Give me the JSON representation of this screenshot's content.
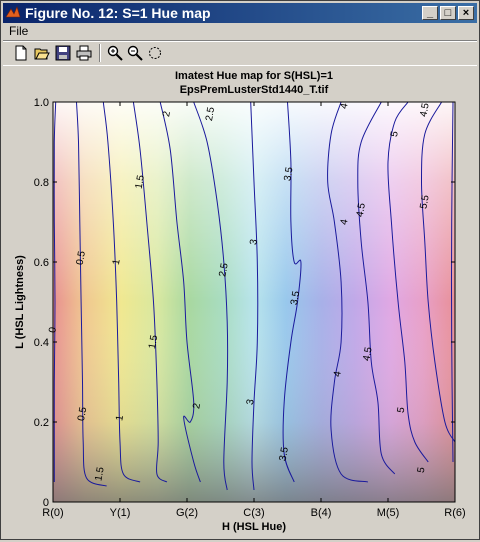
{
  "window": {
    "title": "Figure No. 12: S=1 Hue map",
    "menu": [
      "File"
    ],
    "buttons": {
      "minimize": "_",
      "maximize": "□",
      "close": "×"
    }
  },
  "toolbar": {
    "icons": [
      "new-file-icon",
      "open-folder-icon",
      "save-disk-icon",
      "print-icon",
      "zoom-in-icon",
      "zoom-out-icon",
      "rotate-icon"
    ]
  },
  "chart_data": {
    "type": "contour",
    "title_line1": "Imatest Hue map for S(HSL)=1",
    "title_line2": "EpsPremLusterStd1440_T.tif",
    "xlabel": "H (HSL Hue)",
    "ylabel": "L (HSL Lightness)",
    "x_ticks": [
      "R(0)",
      "Y(1)",
      "G(2)",
      "C(3)",
      "B(4)",
      "M(5)",
      "R(6)"
    ],
    "y_ticks": [
      "0",
      "0.2",
      "0.4",
      "0.6",
      "0.8",
      "1.0"
    ],
    "xlim": [
      0,
      6
    ],
    "ylim": [
      0,
      1
    ],
    "contour_color": "#1a1a9c",
    "contours": [
      {
        "level": "0",
        "points": [
          [
            0.04,
            1.0
          ],
          [
            0.02,
            0.9
          ],
          [
            0.02,
            0.7
          ],
          [
            0.03,
            0.5
          ],
          [
            0.02,
            0.3
          ],
          [
            0.02,
            0.05
          ]
        ],
        "labels": [
          [
            0.0,
            0.43
          ]
        ]
      },
      {
        "level": "0.5",
        "points": [
          [
            0.35,
            1.0
          ],
          [
            0.38,
            0.9
          ],
          [
            0.4,
            0.7
          ],
          [
            0.42,
            0.5
          ],
          [
            0.44,
            0.3
          ],
          [
            0.45,
            0.15
          ],
          [
            0.5,
            0.06
          ],
          [
            0.8,
            0.04
          ]
        ],
        "labels": [
          [
            0.42,
            0.61
          ],
          [
            0.44,
            0.22
          ]
        ]
      },
      {
        "level": "1",
        "points": [
          [
            0.75,
            1.0
          ],
          [
            0.82,
            0.9
          ],
          [
            0.9,
            0.7
          ],
          [
            0.95,
            0.5
          ],
          [
            0.98,
            0.3
          ],
          [
            1.0,
            0.15
          ],
          [
            1.05,
            0.07
          ],
          [
            1.3,
            0.05
          ]
        ],
        "labels": [
          [
            0.95,
            0.6
          ],
          [
            1.0,
            0.21
          ]
        ]
      },
      {
        "level": "1.5",
        "points": [
          [
            1.2,
            1.0
          ],
          [
            1.3,
            0.88
          ],
          [
            1.4,
            0.7
          ],
          [
            1.5,
            0.5
          ],
          [
            1.55,
            0.3
          ],
          [
            1.57,
            0.15
          ],
          [
            1.55,
            0.07
          ],
          [
            1.7,
            0.05
          ]
        ],
        "labels": [
          [
            1.3,
            0.8
          ],
          [
            1.5,
            0.4
          ],
          [
            0.7,
            0.07
          ]
        ]
      },
      {
        "level": "2",
        "points": [
          [
            1.6,
            1.0
          ],
          [
            1.75,
            0.88
          ],
          [
            1.85,
            0.7
          ],
          [
            1.95,
            0.55
          ],
          [
            2.0,
            0.4
          ],
          [
            2.1,
            0.25
          ],
          [
            2.05,
            0.2
          ],
          [
            1.95,
            0.21
          ],
          [
            2.1,
            0.1
          ],
          [
            2.2,
            0.05
          ]
        ],
        "labels": [
          [
            1.7,
            0.97
          ],
          [
            2.15,
            0.24
          ]
        ]
      },
      {
        "level": "2.5",
        "points": [
          [
            2.1,
            1.0
          ],
          [
            2.3,
            0.9
          ],
          [
            2.45,
            0.75
          ],
          [
            2.55,
            0.6
          ],
          [
            2.6,
            0.45
          ],
          [
            2.6,
            0.3
          ],
          [
            2.55,
            0.1
          ],
          [
            2.6,
            0.03
          ]
        ],
        "labels": [
          [
            2.35,
            0.97
          ],
          [
            2.55,
            0.58
          ]
        ]
      },
      {
        "level": "3",
        "points": [
          [
            2.95,
            1.0
          ],
          [
            3.0,
            0.8
          ],
          [
            3.05,
            0.6
          ],
          [
            3.05,
            0.4
          ],
          [
            3.0,
            0.25
          ],
          [
            2.97,
            0.1
          ],
          [
            3.0,
            0.03
          ]
        ],
        "labels": [
          [
            3.0,
            0.65
          ],
          [
            2.95,
            0.25
          ]
        ]
      },
      {
        "level": "3.5",
        "points": [
          [
            3.5,
            1.0
          ],
          [
            3.55,
            0.85
          ],
          [
            3.55,
            0.7
          ],
          [
            3.6,
            0.6
          ],
          [
            3.7,
            0.6
          ],
          [
            3.65,
            0.5
          ],
          [
            3.55,
            0.4
          ],
          [
            3.45,
            0.25
          ],
          [
            3.45,
            0.12
          ],
          [
            3.6,
            0.05
          ]
        ],
        "labels": [
          [
            3.52,
            0.82
          ],
          [
            3.62,
            0.51
          ],
          [
            3.45,
            0.12
          ]
        ]
      },
      {
        "level": "4",
        "points": [
          [
            4.3,
            1.0
          ],
          [
            4.15,
            0.92
          ],
          [
            4.1,
            0.8
          ],
          [
            4.2,
            0.7
          ],
          [
            4.3,
            0.55
          ],
          [
            4.3,
            0.4
          ],
          [
            4.2,
            0.3
          ],
          [
            4.15,
            0.18
          ],
          [
            4.3,
            0.07
          ],
          [
            4.7,
            0.05
          ]
        ],
        "labels": [
          [
            4.35,
            0.99
          ],
          [
            4.35,
            0.7
          ],
          [
            4.25,
            0.32
          ]
        ]
      },
      {
        "level": "4.5",
        "points": [
          [
            4.9,
            1.0
          ],
          [
            4.6,
            0.9
          ],
          [
            4.55,
            0.8
          ],
          [
            4.6,
            0.65
          ],
          [
            4.7,
            0.5
          ],
          [
            4.75,
            0.35
          ],
          [
            4.85,
            0.25
          ],
          [
            4.9,
            0.12
          ],
          [
            5.1,
            0.07
          ]
        ],
        "labels": [
          [
            5.55,
            0.98
          ],
          [
            4.6,
            0.73
          ],
          [
            4.7,
            0.37
          ]
        ]
      },
      {
        "level": "5",
        "points": [
          [
            5.3,
            1.0
          ],
          [
            5.1,
            0.95
          ],
          [
            5.0,
            0.85
          ],
          [
            5.05,
            0.7
          ],
          [
            5.15,
            0.5
          ],
          [
            5.25,
            0.35
          ],
          [
            5.3,
            0.22
          ],
          [
            5.4,
            0.15
          ],
          [
            5.6,
            0.1
          ]
        ],
        "labels": [
          [
            5.1,
            0.92
          ],
          [
            5.2,
            0.23
          ],
          [
            5.5,
            0.08
          ]
        ]
      },
      {
        "level": "5.5",
        "points": [
          [
            5.8,
            1.0
          ],
          [
            5.55,
            0.92
          ],
          [
            5.5,
            0.8
          ],
          [
            5.55,
            0.65
          ],
          [
            5.6,
            0.5
          ],
          [
            5.7,
            0.35
          ],
          [
            5.85,
            0.2
          ],
          [
            6.0,
            0.15
          ]
        ],
        "labels": [
          [
            5.55,
            0.75
          ]
        ]
      },
      {
        "level": "6",
        "points": [
          [
            5.97,
            1.0
          ],
          [
            5.95,
            0.7
          ],
          [
            5.95,
            0.4
          ],
          [
            5.97,
            0.1
          ]
        ],
        "labels": []
      }
    ]
  }
}
